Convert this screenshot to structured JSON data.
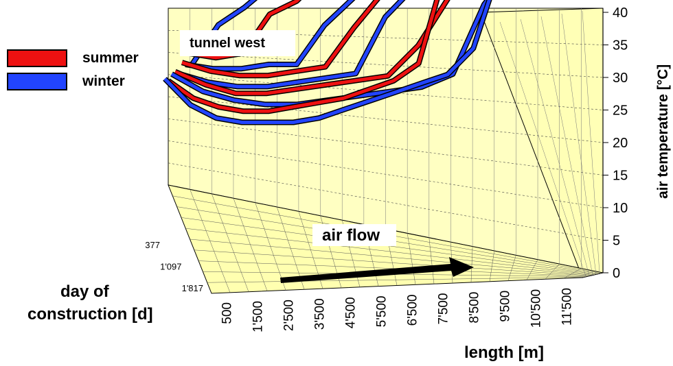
{
  "chart_data": {
    "type": "3d-line",
    "title": "tunnel west",
    "annotation": "air flow",
    "zlabel": "air temperature [°C]",
    "xlabel": "length [m]",
    "ylabel_line1": "day of",
    "ylabel_line2": "construction [d]",
    "zlim": [
      0,
      40
    ],
    "z_ticks": [
      "0",
      "5",
      "10",
      "15",
      "20",
      "25",
      "30",
      "35",
      "40"
    ],
    "x_ticks": [
      "500",
      "1'500",
      "2'500",
      "3'500",
      "4'500",
      "5'500",
      "6'500",
      "7'500",
      "8'500",
      "9'500",
      "10'500",
      "11'500"
    ],
    "depth_ticks": [
      "377",
      "1'097",
      "1'817"
    ],
    "legend": [
      {
        "name": "summer",
        "color": "#ee1111"
      },
      {
        "name": "winter",
        "color": "#2244ff"
      }
    ],
    "series": [
      {
        "season": "winter",
        "values": [
          19.5,
          24,
          26,
          28.5
        ]
      },
      {
        "season": "summer",
        "values": [
          21,
          20.5,
          21,
          25.5,
          27,
          30
        ]
      },
      {
        "season": "winter",
        "values": [
          20,
          19.5,
          19.5,
          20,
          20,
          24.5,
          27.5,
          30.5
        ]
      },
      {
        "season": "summer",
        "values": [
          20.5,
          19.5,
          19,
          19,
          19.5,
          20,
          24.5,
          28.5,
          31.5
        ]
      },
      {
        "season": "winter",
        "values": [
          19.5,
          18.5,
          18,
          18,
          18.5,
          19,
          19.5,
          26,
          29.5,
          32.5
        ]
      },
      {
        "season": "summer",
        "values": [
          20,
          18.5,
          17.5,
          17.5,
          18,
          18.5,
          19,
          19.5,
          23,
          28.5,
          31.5
        ]
      },
      {
        "season": "winter",
        "values": [
          20,
          18,
          17,
          16.5,
          16.5,
          17,
          17.5,
          18,
          18.5,
          20,
          28,
          32.5
        ]
      },
      {
        "season": "summer",
        "values": [
          19.5,
          17.5,
          16.5,
          16,
          16,
          16.5,
          17,
          17.5,
          18.5,
          19.5,
          21.5,
          31.5,
          34
        ]
      },
      {
        "season": "winter",
        "values": [
          20,
          17,
          15.5,
          15,
          15,
          15,
          15.5,
          16.5,
          17.5,
          18.5,
          19.5,
          20.5,
          23.5,
          32.5,
          35.5,
          38.5
        ]
      }
    ]
  }
}
